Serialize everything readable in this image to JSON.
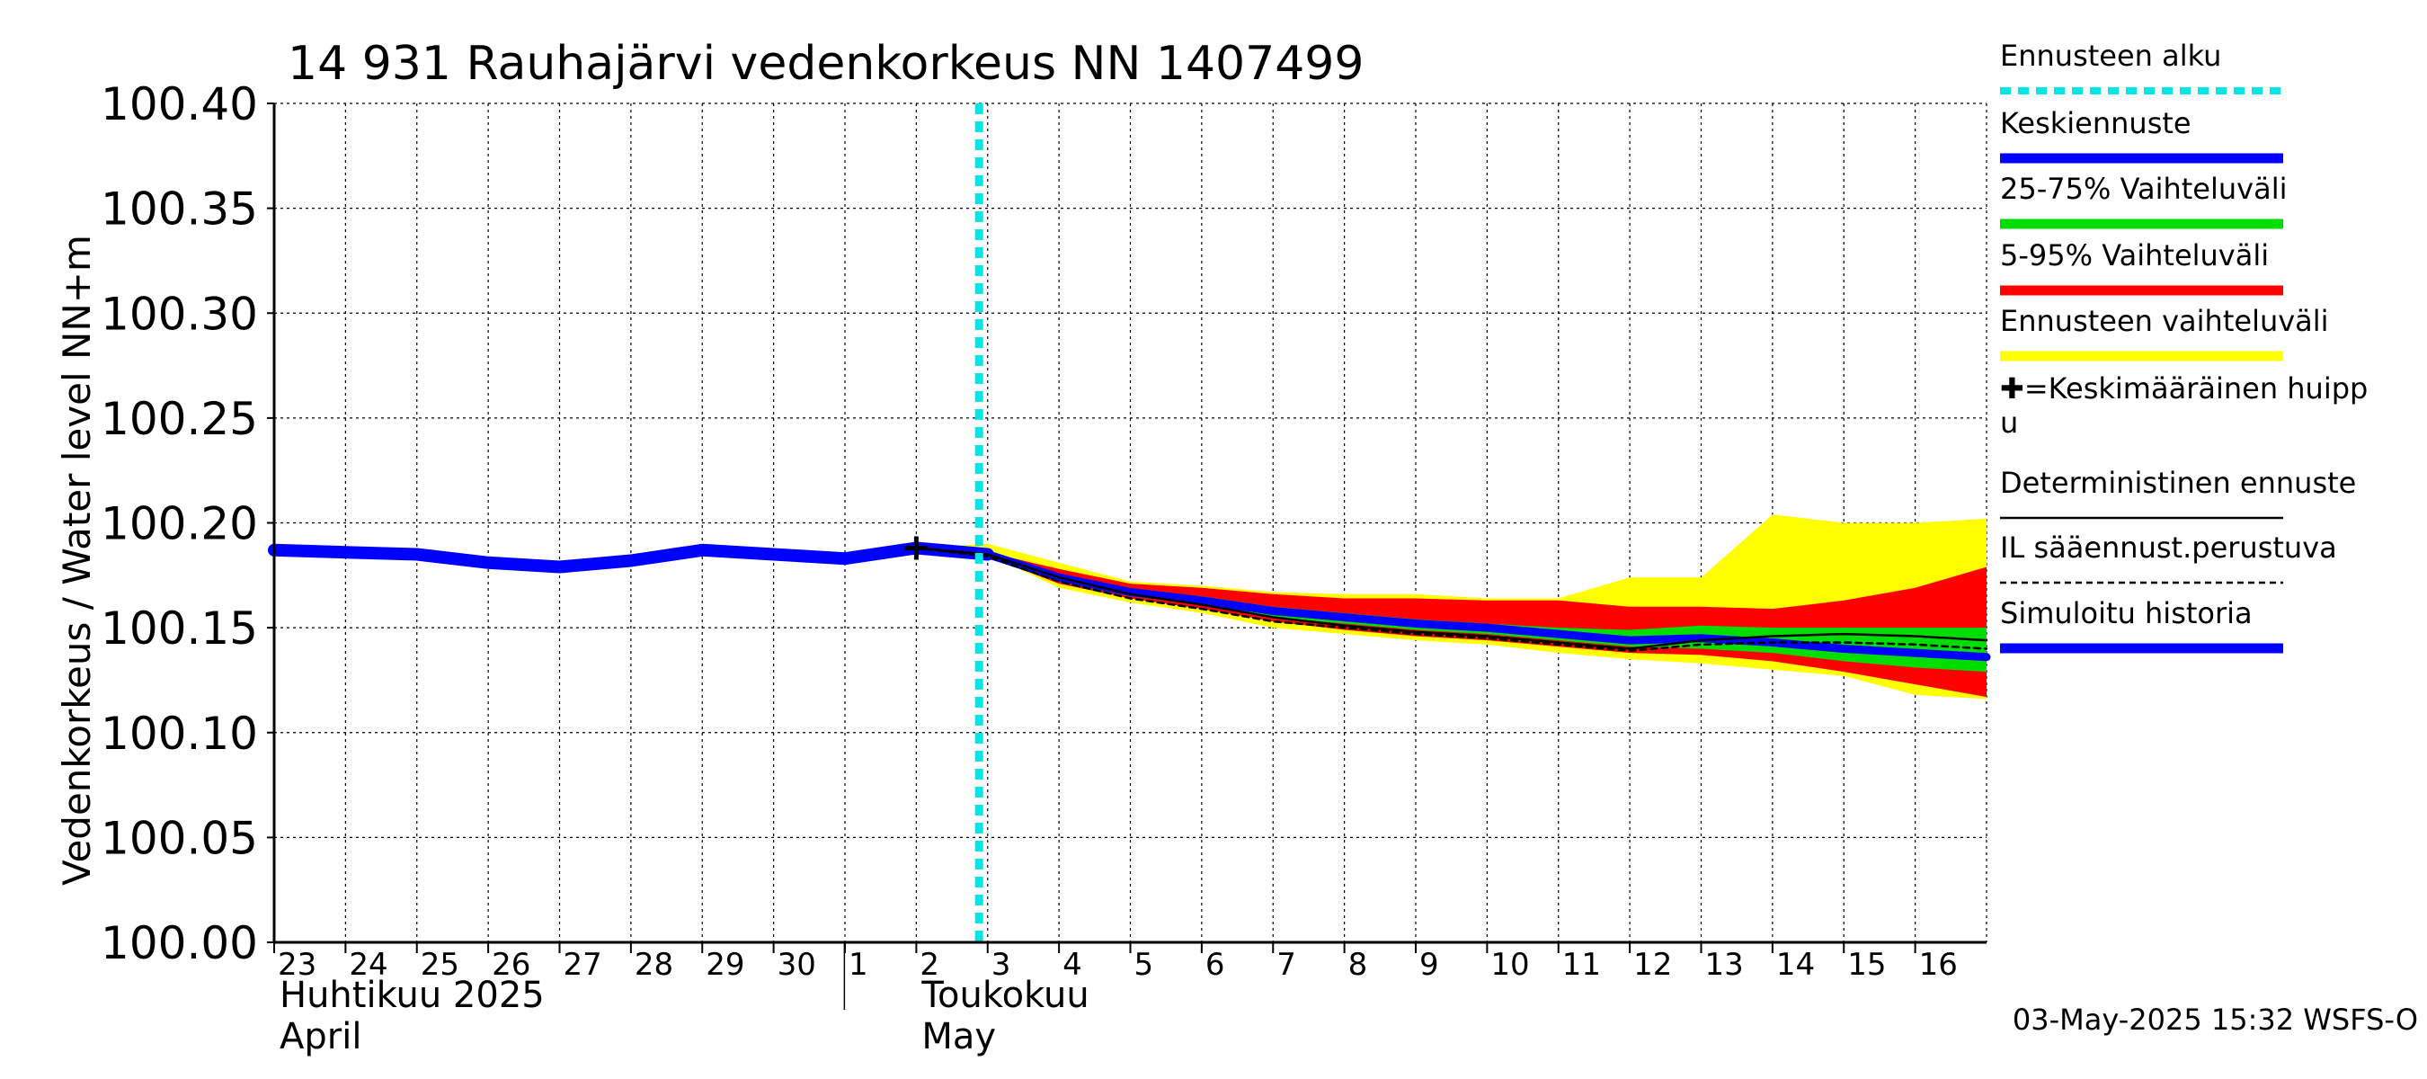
{
  "chart_data": {
    "type": "area",
    "title": "14 931 Rauhajärvi vedenkorkeus NN 1407499",
    "ylabel": "Vedenkorkeus / Water level   NN+m",
    "ylim": [
      100.0,
      100.4
    ],
    "yticks": [
      "100.00",
      "100.05",
      "100.10",
      "100.15",
      "100.20",
      "100.25",
      "100.30",
      "100.35",
      "100.40"
    ],
    "x_start": "2025-04-23",
    "x_end": "2025-05-17",
    "day_labels": [
      "23",
      "24",
      "25",
      "26",
      "27",
      "28",
      "29",
      "30",
      "1",
      "2",
      "3",
      "4",
      "5",
      "6",
      "7",
      "8",
      "9",
      "10",
      "11",
      "12",
      "13",
      "14",
      "15",
      "16"
    ],
    "month_labels": [
      {
        "fi": "Huhtikuu  2025",
        "en": "April",
        "start": "2025-04-23"
      },
      {
        "fi": "Toukokuu",
        "en": "May",
        "start": "2025-05-02"
      }
    ],
    "forecast_start": "2025-05-03",
    "series": [
      {
        "name": "Ennusteen vaihteluväli",
        "color": "#ffff00",
        "type": "band",
        "x": [
          "2025-05-02",
          "2025-05-03",
          "2025-05-04",
          "2025-05-05",
          "2025-05-06",
          "2025-05-07",
          "2025-05-08",
          "2025-05-09",
          "2025-05-10",
          "2025-05-11",
          "2025-05-12",
          "2025-05-13",
          "2025-05-14",
          "2025-05-15",
          "2025-05-16",
          "2025-05-17"
        ],
        "upper": [
          100.188,
          100.19,
          100.181,
          100.172,
          100.17,
          100.167,
          100.166,
          100.166,
          100.164,
          100.164,
          100.174,
          100.174,
          100.204,
          100.2,
          100.2,
          100.202
        ],
        "lower": [
          100.186,
          100.185,
          100.169,
          100.162,
          100.157,
          100.15,
          100.147,
          100.144,
          100.142,
          100.138,
          100.135,
          100.133,
          100.13,
          100.127,
          100.118,
          100.116
        ]
      },
      {
        "name": "5-95% Vaihteluväli",
        "color": "#ff0000",
        "type": "band",
        "x": [
          "2025-05-02",
          "2025-05-03",
          "2025-05-04",
          "2025-05-05",
          "2025-05-06",
          "2025-05-07",
          "2025-05-08",
          "2025-05-09",
          "2025-05-10",
          "2025-05-11",
          "2025-05-12",
          "2025-05-13",
          "2025-05-14",
          "2025-05-15",
          "2025-05-16",
          "2025-05-17"
        ],
        "upper": [
          100.188,
          100.186,
          100.178,
          100.171,
          100.169,
          100.166,
          100.164,
          100.164,
          100.163,
          100.163,
          100.16,
          100.16,
          100.159,
          100.163,
          100.169,
          100.179
        ],
        "lower": [
          100.187,
          100.184,
          100.171,
          100.164,
          100.159,
          100.153,
          100.149,
          100.146,
          100.144,
          100.141,
          100.138,
          100.137,
          100.134,
          100.129,
          100.123,
          100.117
        ]
      },
      {
        "name": "25-75% Vaihteluväli",
        "color": "#00dd00",
        "type": "band",
        "x": [
          "2025-05-02",
          "2025-05-03",
          "2025-05-04",
          "2025-05-05",
          "2025-05-06",
          "2025-05-07",
          "2025-05-08",
          "2025-05-09",
          "2025-05-10",
          "2025-05-11",
          "2025-05-12",
          "2025-05-13",
          "2025-05-14",
          "2025-05-15",
          "2025-05-16",
          "2025-05-17"
        ],
        "upper": [
          100.188,
          100.185,
          100.175,
          100.168,
          100.165,
          100.16,
          100.157,
          100.154,
          100.152,
          100.15,
          100.149,
          100.151,
          100.15,
          100.15,
          100.15,
          100.15
        ],
        "lower": [
          100.187,
          100.184,
          100.172,
          100.165,
          100.161,
          100.155,
          100.152,
          100.149,
          100.147,
          100.144,
          100.141,
          100.14,
          100.138,
          100.134,
          100.131,
          100.129
        ]
      },
      {
        "name": "Keskiennuste",
        "color": "#0000ff",
        "type": "line",
        "x": [
          "2025-05-02",
          "2025-05-03",
          "2025-05-04",
          "2025-05-05",
          "2025-05-06",
          "2025-05-07",
          "2025-05-08",
          "2025-05-09",
          "2025-05-10",
          "2025-05-11",
          "2025-05-12",
          "2025-05-13",
          "2025-05-14",
          "2025-05-15",
          "2025-05-16",
          "2025-05-17"
        ],
        "y": [
          100.188,
          100.185,
          100.174,
          100.167,
          100.163,
          100.158,
          100.155,
          100.152,
          100.15,
          100.147,
          100.144,
          100.145,
          100.143,
          100.14,
          100.138,
          100.136
        ]
      },
      {
        "name": "Deterministinen ennuste",
        "color": "#000000",
        "type": "line",
        "x": [
          "2025-05-02",
          "2025-05-03",
          "2025-05-04",
          "2025-05-05",
          "2025-05-06",
          "2025-05-07",
          "2025-05-08",
          "2025-05-09",
          "2025-05-10",
          "2025-05-11",
          "2025-05-12",
          "2025-05-13",
          "2025-05-14",
          "2025-05-15",
          "2025-05-16",
          "2025-05-17"
        ],
        "y": [
          100.188,
          100.185,
          100.174,
          100.166,
          100.161,
          100.155,
          100.151,
          100.148,
          100.146,
          100.143,
          100.14,
          100.144,
          100.146,
          100.147,
          100.146,
          100.144
        ]
      },
      {
        "name": "IL sääennust.perustuva",
        "color": "#000000",
        "type": "dashed",
        "x": [
          "2025-05-02",
          "2025-05-03",
          "2025-05-04",
          "2025-05-05",
          "2025-05-06",
          "2025-05-07",
          "2025-05-08",
          "2025-05-09",
          "2025-05-10",
          "2025-05-11",
          "2025-05-12",
          "2025-05-13",
          "2025-05-14",
          "2025-05-15",
          "2025-05-16",
          "2025-05-17"
        ],
        "y": [
          100.188,
          100.184,
          100.172,
          100.164,
          100.159,
          100.153,
          100.15,
          100.147,
          100.145,
          100.142,
          100.139,
          100.142,
          100.143,
          100.143,
          100.142,
          100.14
        ]
      },
      {
        "name": "Simuloitu historia",
        "color": "#0000ff",
        "type": "line",
        "x": [
          "2025-04-23",
          "2025-04-24",
          "2025-04-25",
          "2025-04-26",
          "2025-04-27",
          "2025-04-28",
          "2025-04-29",
          "2025-04-30",
          "2025-05-01",
          "2025-05-02",
          "2025-05-03"
        ],
        "y": [
          100.187,
          100.186,
          100.185,
          100.181,
          100.179,
          100.182,
          100.187,
          100.185,
          100.183,
          100.188,
          100.185
        ]
      }
    ],
    "peak_marker": {
      "x": "2025-05-02",
      "y": 100.188
    },
    "legend": [
      {
        "label": "Ennusteen alku",
        "color": "#00e5e5",
        "style": "dotted"
      },
      {
        "label": "Keskiennuste",
        "color": "#0000ff",
        "style": "solid"
      },
      {
        "label": "25-75% Vaihteluväli",
        "color": "#00dd00",
        "style": "solid"
      },
      {
        "label": "5-95% Vaihteluväli",
        "color": "#ff0000",
        "style": "solid"
      },
      {
        "label": "Ennusteen vaihteluväli",
        "color": "#ffff00",
        "style": "solid"
      },
      {
        "label": "✚=Keskimääräinen huipp\nu",
        "color": "",
        "style": "none"
      },
      {
        "label": "Deterministinen ennuste",
        "color": "#000000",
        "style": "thin"
      },
      {
        "label": "IL sääennust.perustuva",
        "color": "#000000",
        "style": "dashed"
      },
      {
        "label": "Simuloitu historia",
        "color": "#0000ff",
        "style": "solid"
      }
    ],
    "legend_placement": "right",
    "grid": true,
    "timestamp": "03-May-2025 15:32 WSFS-O"
  }
}
